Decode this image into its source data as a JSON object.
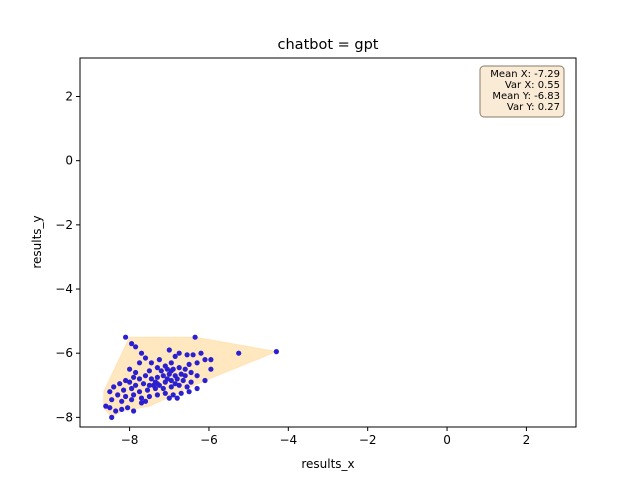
{
  "chart_data": {
    "type": "scatter",
    "title": "chatbot = gpt",
    "xlabel": "results_x",
    "ylabel": "results_y",
    "xlim": [
      -9.25,
      3.25
    ],
    "ylim": [
      -8.3,
      3.2
    ],
    "xticks": [
      -8,
      -6,
      -4,
      -2,
      0,
      2
    ],
    "yticks": [
      -8,
      -6,
      -4,
      -2,
      0,
      2
    ],
    "xtick_labels": [
      "−8",
      "−6",
      "−4",
      "−2",
      "0",
      "2"
    ],
    "ytick_labels": [
      "−8",
      "−6",
      "−4",
      "−2",
      "0",
      "2"
    ],
    "grid": false,
    "point_color": "#2a1fd1",
    "hull_color": "#ffe4b8",
    "stats_box": {
      "lines": [
        "Mean X: -7.29",
        "Var X: 0.55",
        "Mean Y: -6.83",
        "Var Y: 0.27"
      ],
      "placement": "top-right",
      "background": "#faebd7",
      "border": "#8b7b6b"
    },
    "hull": [
      [
        -8.65,
        -7.2
      ],
      [
        -8.0,
        -5.5
      ],
      [
        -6.35,
        -5.5
      ],
      [
        -4.3,
        -5.95
      ],
      [
        -6.1,
        -6.85
      ],
      [
        -7.5,
        -7.65
      ],
      [
        -8.2,
        -7.8
      ],
      [
        -8.45,
        -8.0
      ],
      [
        -8.65,
        -7.7
      ]
    ],
    "points": [
      [
        -8.1,
        -5.5
      ],
      [
        -6.35,
        -5.5
      ],
      [
        -4.3,
        -5.95
      ],
      [
        -5.25,
        -6.0
      ],
      [
        -7.95,
        -5.7
      ],
      [
        -7.85,
        -5.8
      ],
      [
        -7.0,
        -5.9
      ],
      [
        -6.75,
        -6.0
      ],
      [
        -6.55,
        -6.05
      ],
      [
        -6.4,
        -6.05
      ],
      [
        -6.2,
        -6.0
      ],
      [
        -5.95,
        -6.2
      ],
      [
        -6.1,
        -6.2
      ],
      [
        -6.3,
        -6.3
      ],
      [
        -6.5,
        -6.35
      ],
      [
        -5.95,
        -6.5
      ],
      [
        -6.45,
        -6.6
      ],
      [
        -6.85,
        -6.1
      ],
      [
        -7.25,
        -6.2
      ],
      [
        -7.45,
        -6.3
      ],
      [
        -7.7,
        -6.0
      ],
      [
        -7.6,
        -6.15
      ],
      [
        -7.1,
        -6.4
      ],
      [
        -6.95,
        -6.3
      ],
      [
        -7.3,
        -6.45
      ],
      [
        -7.5,
        -6.55
      ],
      [
        -7.75,
        -6.3
      ],
      [
        -8.0,
        -6.5
      ],
      [
        -7.85,
        -6.6
      ],
      [
        -7.05,
        -6.5
      ],
      [
        -6.9,
        -6.5
      ],
      [
        -6.75,
        -6.45
      ],
      [
        -6.6,
        -6.5
      ],
      [
        -6.7,
        -6.65
      ],
      [
        -6.85,
        -6.7
      ],
      [
        -7.0,
        -6.65
      ],
      [
        -7.15,
        -6.7
      ],
      [
        -7.3,
        -6.75
      ],
      [
        -7.45,
        -6.8
      ],
      [
        -7.6,
        -6.7
      ],
      [
        -7.75,
        -6.8
      ],
      [
        -7.9,
        -6.75
      ],
      [
        -8.1,
        -6.85
      ],
      [
        -8.25,
        -6.95
      ],
      [
        -8.0,
        -6.9
      ],
      [
        -7.85,
        -7.0
      ],
      [
        -7.65,
        -6.95
      ],
      [
        -7.5,
        -7.0
      ],
      [
        -7.3,
        -6.95
      ],
      [
        -7.1,
        -6.9
      ],
      [
        -6.95,
        -6.85
      ],
      [
        -6.8,
        -6.8
      ],
      [
        -6.65,
        -6.85
      ],
      [
        -6.45,
        -6.9
      ],
      [
        -6.3,
        -6.7
      ],
      [
        -6.55,
        -7.05
      ],
      [
        -6.75,
        -7.0
      ],
      [
        -6.95,
        -7.05
      ],
      [
        -7.15,
        -7.1
      ],
      [
        -7.35,
        -7.1
      ],
      [
        -7.55,
        -7.15
      ],
      [
        -7.75,
        -7.2
      ],
      [
        -7.95,
        -7.1
      ],
      [
        -8.15,
        -7.15
      ],
      [
        -8.4,
        -7.05
      ],
      [
        -8.5,
        -7.2
      ],
      [
        -8.3,
        -7.3
      ],
      [
        -8.1,
        -7.35
      ],
      [
        -7.9,
        -7.3
      ],
      [
        -7.7,
        -7.4
      ],
      [
        -7.5,
        -7.35
      ],
      [
        -7.3,
        -7.3
      ],
      [
        -7.1,
        -7.25
      ],
      [
        -6.9,
        -7.3
      ],
      [
        -6.7,
        -7.25
      ],
      [
        -6.5,
        -7.2
      ],
      [
        -6.3,
        -7.1
      ],
      [
        -6.1,
        -6.85
      ],
      [
        -7.0,
        -7.4
      ],
      [
        -6.8,
        -7.4
      ],
      [
        -7.6,
        -7.5
      ],
      [
        -7.95,
        -7.45
      ],
      [
        -8.2,
        -7.5
      ],
      [
        -8.45,
        -7.45
      ],
      [
        -8.6,
        -7.65
      ],
      [
        -8.5,
        -7.7
      ],
      [
        -8.35,
        -7.8
      ],
      [
        -8.2,
        -7.75
      ],
      [
        -8.05,
        -7.7
      ],
      [
        -7.9,
        -7.8
      ],
      [
        -8.45,
        -8.0
      ],
      [
        -7.7,
        -7.55
      ],
      [
        -7.2,
        -6.55
      ],
      [
        -6.95,
        -6.55
      ],
      [
        -7.35,
        -6.9
      ],
      [
        -6.6,
        -6.7
      ],
      [
        -7.05,
        -6.8
      ],
      [
        -7.4,
        -7.0
      ],
      [
        -6.85,
        -6.95
      ],
      [
        -7.25,
        -7.0
      ]
    ]
  }
}
